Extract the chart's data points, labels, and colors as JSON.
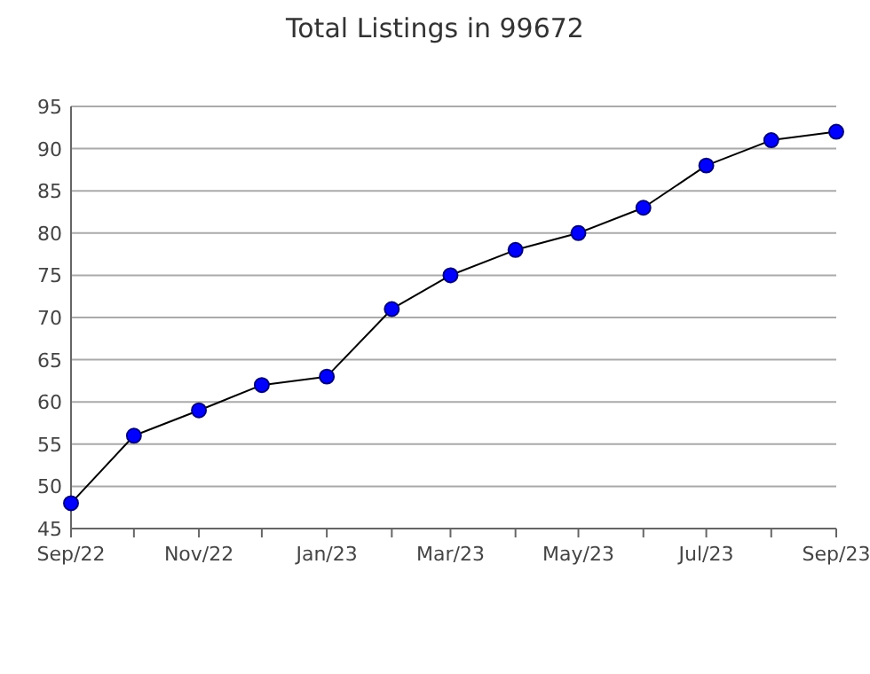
{
  "chart_data": {
    "type": "line",
    "title": "Total Listings in 99672",
    "x": [
      "2022-09",
      "2022-10",
      "2022-11",
      "2022-12",
      "2023-01",
      "2023-02",
      "2023-03",
      "2023-04",
      "2023-05",
      "2023-06",
      "2023-07",
      "2023-08",
      "2023-09"
    ],
    "series": [
      {
        "color": "#0000ff",
        "values": [
          48,
          56,
          59,
          62,
          63,
          71,
          75,
          78,
          80,
          83,
          88,
          91,
          92
        ]
      }
    ],
    "xlim": [
      "2022-09",
      "2023-09"
    ],
    "xticks": [
      {
        "value": "2022-09",
        "label": "Sep/22"
      },
      {
        "value": "2022-10",
        "label": null
      },
      {
        "value": "2022-11",
        "label": "Nov/22"
      },
      {
        "value": "2022-12",
        "label": null
      },
      {
        "value": "2023-01",
        "label": "Jan/23"
      },
      {
        "value": "2023-02",
        "label": null
      },
      {
        "value": "2023-03",
        "label": "Mar/23"
      },
      {
        "value": "2023-04",
        "label": null
      },
      {
        "value": "2023-05",
        "label": "May/23"
      },
      {
        "value": "2023-06",
        "label": null
      },
      {
        "value": "2023-07",
        "label": "Jul/23"
      },
      {
        "value": "2023-08",
        "label": null
      },
      {
        "value": "2023-09",
        "label": "Sep/23"
      }
    ],
    "ylim": [
      45,
      95
    ],
    "yticks": [
      45,
      50,
      55,
      60,
      65,
      70,
      75,
      80,
      85,
      90,
      95
    ],
    "grid": "y",
    "marker": "circle",
    "line_style": "solid"
  }
}
